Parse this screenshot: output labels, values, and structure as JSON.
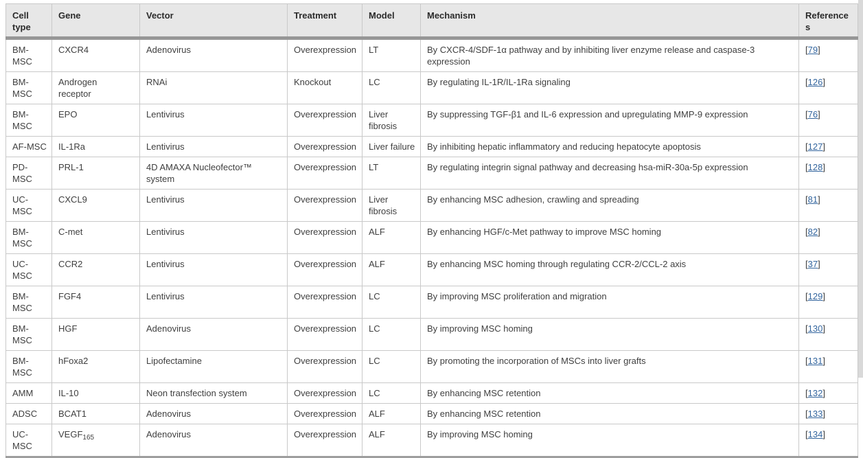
{
  "colors": {
    "link_blue": "#33659e",
    "header_bg": "#e7e7e7",
    "header_rule": "#979797",
    "cell_border": "#c9c9c9",
    "body_text": "#3f3f3f",
    "scrollbar_track": "#d9d9d9"
  },
  "table": {
    "ref_format": {
      "open": "[",
      "close": "]"
    },
    "columns": [
      {
        "key": "cell_type",
        "label": "Cell\ntype"
      },
      {
        "key": "gene",
        "label": "Gene"
      },
      {
        "key": "vector",
        "label": "Vector"
      },
      {
        "key": "treatment",
        "label": "Treatment"
      },
      {
        "key": "model",
        "label": "Model"
      },
      {
        "key": "mechanism",
        "label": "Mechanism"
      },
      {
        "key": "ref",
        "label": "References"
      }
    ],
    "rows": [
      {
        "cell_type": "BM-MSC",
        "gene": "CXCR4",
        "vector": "Adenovirus",
        "treatment": "Overexpression",
        "model": "LT",
        "mechanism": "By CXCR-4/SDF-1α pathway and by inhibiting liver enzyme release and caspase-3\nexpression",
        "ref": "79"
      },
      {
        "cell_type": "BM-MSC",
        "gene": "Androgen\nreceptor",
        "vector": "RNAi",
        "treatment": "Knockout",
        "model": "LC",
        "mechanism": "By regulating IL-1R/IL-1Ra signaling",
        "ref": "126"
      },
      {
        "cell_type": "BM-MSC",
        "gene": "EPO",
        "vector": "Lentivirus",
        "treatment": "Overexpression",
        "model": "Liver\nfibrosis",
        "mechanism": "By suppressing TGF-β1 and IL-6 expression and upregulating MMP-9 expression",
        "ref": "76"
      },
      {
        "cell_type": "AF-MSC",
        "gene": "IL-1Ra",
        "vector": "Lentivirus",
        "treatment": "Overexpression",
        "model": "Liver failure",
        "mechanism": "By inhibiting hepatic inflammatory and reducing hepatocyte apoptosis",
        "ref": "127"
      },
      {
        "cell_type": "PD-MSC",
        "gene": "PRL-1",
        "vector": "4D AMAXA Nucleofector™\nsystem",
        "treatment": "Overexpression",
        "model": "LT",
        "mechanism": "By regulating integrin signal pathway and decreasing hsa-miR-30a-5p expression",
        "ref": "128"
      },
      {
        "cell_type": "UC-MSC",
        "gene": "CXCL9",
        "vector": "Lentivirus",
        "treatment": "Overexpression",
        "model": "Liver\nfibrosis",
        "mechanism": "By enhancing MSC adhesion, crawling and spreading",
        "ref": "81"
      },
      {
        "cell_type": "BM-MSC",
        "gene": "C-met",
        "vector": "Lentivirus",
        "treatment": "Overexpression",
        "model": "ALF",
        "mechanism": "By enhancing HGF/c-Met pathway to improve MSC homing",
        "ref": "82"
      },
      {
        "cell_type": "UC-MSC",
        "gene": "CCR2",
        "vector": "Lentivirus",
        "treatment": "Overexpression",
        "model": "ALF",
        "mechanism": "By enhancing MSC homing through regulating CCR-2/CCL-2 axis",
        "ref": "37"
      },
      {
        "cell_type": "BM-MSC",
        "gene": "FGF4",
        "vector": "Lentivirus",
        "treatment": "Overexpression",
        "model": "LC",
        "mechanism": "By improving MSC proliferation and migration",
        "ref": "129"
      },
      {
        "cell_type": "BM-MSC",
        "gene": "HGF",
        "vector": "Adenovirus",
        "treatment": "Overexpression",
        "model": "LC",
        "mechanism": "By improving MSC homing",
        "ref": "130"
      },
      {
        "cell_type": "BM-MSC",
        "gene": "hFoxa2",
        "vector": "Lipofectamine",
        "treatment": "Overexpression",
        "model": "LC",
        "mechanism": "By promoting the incorporation of MSCs into liver grafts",
        "ref": "131"
      },
      {
        "cell_type": "AMM",
        "gene": "IL-10",
        "vector": "Neon transfection system",
        "treatment": "Overexpression",
        "model": "LC",
        "mechanism": "By enhancing MSC retention",
        "ref": "132"
      },
      {
        "cell_type": "ADSC",
        "gene": "BCAT1",
        "vector": "Adenovirus",
        "treatment": "Overexpression",
        "model": "ALF",
        "mechanism": "By enhancing MSC retention",
        "ref": "133"
      },
      {
        "cell_type": "UC-MSC",
        "gene": "VEGF",
        "gene_sub": "165",
        "vector": "Adenovirus",
        "treatment": "Overexpression",
        "model": "ALF",
        "mechanism": "By improving MSC homing",
        "ref": "134"
      }
    ]
  }
}
